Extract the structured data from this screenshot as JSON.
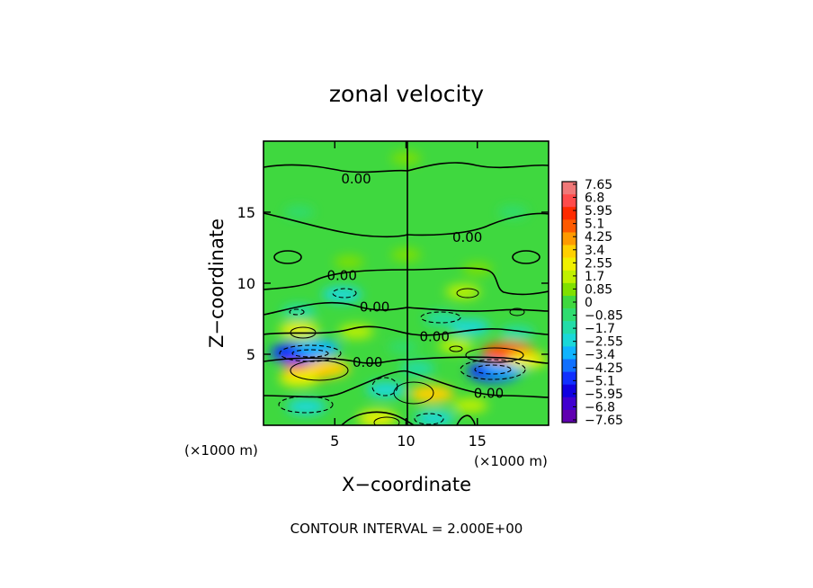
{
  "chart_data": {
    "type": "heatmap",
    "title": "zonal velocity",
    "xlabel": "X−coordinate",
    "ylabel": "Z−coordinate",
    "x_unit": "(×1000 m)",
    "y_unit": "(×1000 m)",
    "xlim": [
      0,
      20
    ],
    "ylim": [
      0,
      20
    ],
    "x_ticks": [
      5,
      10,
      15
    ],
    "y_ticks": [
      5,
      10,
      15
    ],
    "contour_interval_text": "CONTOUR INTERVAL = 2.000E+00",
    "colorbar": {
      "labels": [
        "7.65",
        "6.8",
        "5.95",
        "5.1",
        "4.25",
        "3.4",
        "2.55",
        "1.7",
        "0.85",
        "0",
        "−0.85",
        "−1.7",
        "−2.55",
        "−3.4",
        "−4.25",
        "−5.1",
        "−5.95",
        "−6.8",
        "−7.65"
      ],
      "values": [
        7.65,
        6.8,
        5.95,
        5.1,
        4.25,
        3.4,
        2.55,
        1.7,
        0.85,
        0,
        -0.85,
        -1.7,
        -2.55,
        -3.4,
        -4.25,
        -5.1,
        -5.95,
        -6.8,
        -7.65
      ],
      "colors": [
        "#f07878",
        "#ff4b4b",
        "#ff2a00",
        "#ff5a00",
        "#ff9a00",
        "#ffd000",
        "#f0f000",
        "#c0f000",
        "#80e000",
        "#3fd83f",
        "#2fdc70",
        "#22dca8",
        "#1ad8d8",
        "#10b4ff",
        "#1070ff",
        "#1030ff",
        "#1000e0",
        "#4000d0",
        "#6000b0"
      ]
    },
    "zero_contour_labels": [
      {
        "text": "0.00",
        "x": 6.5,
        "z": 17.4
      },
      {
        "text": "0.00",
        "x": 14.3,
        "z": 13.3
      },
      {
        "text": "0.00",
        "x": 5.5,
        "z": 10.6
      },
      {
        "text": "0.00",
        "x": 7.8,
        "z": 8.4
      },
      {
        "text": "0.00",
        "x": 12.0,
        "z": 6.3
      },
      {
        "text": "0.00",
        "x": 7.3,
        "z": 4.5
      },
      {
        "text": "0.00",
        "x": 15.8,
        "z": 2.3
      }
    ],
    "features": [
      {
        "x": 3.3,
        "z": 3.9,
        "value": 5.1
      },
      {
        "x": 4.5,
        "z": 4.0,
        "value": 3.4
      },
      {
        "x": 2.5,
        "z": 3.3,
        "value": 2.55
      },
      {
        "x": 2.4,
        "z": 5.1,
        "value": -5.1
      },
      {
        "x": 3.8,
        "z": 5.4,
        "value": -3.4
      },
      {
        "x": 3.0,
        "z": 1.3,
        "value": -2.55
      },
      {
        "x": 8.6,
        "z": 2.5,
        "value": -2.55
      },
      {
        "x": 2.5,
        "z": 6.7,
        "value": 2.55
      },
      {
        "x": 6.5,
        "z": 6.6,
        "value": 1.7
      },
      {
        "x": 5.5,
        "z": 9.2,
        "value": -2.55
      },
      {
        "x": 2.5,
        "z": 8.0,
        "value": -1.7
      },
      {
        "x": 8.0,
        "z": 0.5,
        "value": 2.55
      },
      {
        "x": 16.2,
        "z": 3.8,
        "value": -5.1
      },
      {
        "x": 17.0,
        "z": 4.1,
        "value": -3.4
      },
      {
        "x": 17.2,
        "z": 5.1,
        "value": 5.1
      },
      {
        "x": 18.5,
        "z": 4.6,
        "value": 2.55
      },
      {
        "x": 11.8,
        "z": 2.2,
        "value": 3.4
      },
      {
        "x": 14.5,
        "z": 1.4,
        "value": 1.7
      },
      {
        "x": 12.0,
        "z": 0.5,
        "value": -2.55
      },
      {
        "x": 12.5,
        "z": 7.5,
        "value": -1.7
      },
      {
        "x": 14.5,
        "z": 6.9,
        "value": -2.55
      },
      {
        "x": 13.5,
        "z": 5.6,
        "value": 1.7
      },
      {
        "x": 14.0,
        "z": 9.4,
        "value": 1.7
      },
      {
        "x": 17.8,
        "z": 6.5,
        "value": -1.7
      },
      {
        "x": 10.8,
        "z": 4.0,
        "value": -1.7
      },
      {
        "x": 9.8,
        "z": 5.5,
        "value": -0.85
      },
      {
        "x": 2.5,
        "z": 15.0,
        "value": -0.85
      },
      {
        "x": 17.5,
        "z": 15.0,
        "value": -0.85
      },
      {
        "x": 10.0,
        "z": 12.0,
        "value": 0.85
      },
      {
        "x": 6.0,
        "z": 11.5,
        "value": 0.85
      },
      {
        "x": 15.0,
        "z": 11.0,
        "value": 0.85
      },
      {
        "x": 10.0,
        "z": 18.8,
        "value": 0.85
      }
    ]
  }
}
